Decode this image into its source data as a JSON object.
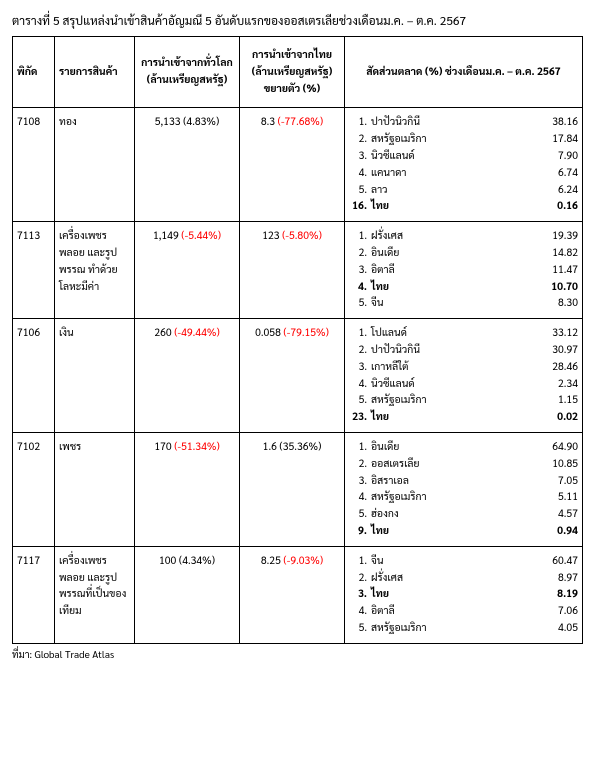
{
  "title": "ตารางที่ 5 สรุปแหล่งนำเข้าสินค้าอัญมณี 5 อันดับแรกของออสเตรเลียช่วงเดือนม.ค. – ต.ค. 2567",
  "headers": {
    "code": "พิกัด",
    "product": "รายการสินค้า",
    "world": "การนำเข้าจากทั่วโลก (ล้านเหรียญสหรัฐ)",
    "thai": "การนำเข้าจากไทย (ล้านเหรียญสหรัฐ) ขยายตัว (%)",
    "share": "สัดส่วนตลาด (%) ช่วงเดือนม.ค. – ต.ค. 2567"
  },
  "rows": [
    {
      "code": "7108",
      "product": "ทอง",
      "world_val": "5,133",
      "world_pct": "(4.83%)",
      "world_neg": false,
      "thai_val": "8.3",
      "thai_pct": "(-77.68%)",
      "thai_neg": true,
      "countries": [
        {
          "rank": "1.",
          "name": "ปาปัวนิวกินี",
          "pct": "38.16",
          "bold": false
        },
        {
          "rank": "2.",
          "name": "สหรัฐอเมริกา",
          "pct": "17.84",
          "bold": false
        },
        {
          "rank": "3.",
          "name": "นิวซีแลนด์",
          "pct": "7.90",
          "bold": false
        },
        {
          "rank": "4.",
          "name": "แคนาดา",
          "pct": "6.74",
          "bold": false
        },
        {
          "rank": "5.",
          "name": "ลาว",
          "pct": "6.24",
          "bold": false
        },
        {
          "rank": "16.",
          "name": "ไทย",
          "pct": "0.16",
          "bold": true
        }
      ]
    },
    {
      "code": "7113",
      "product": "เครื่องเพชรพลอย และรูปพรรณ ทำด้วยโลหะมีค่า",
      "world_val": "1,149",
      "world_pct": "(-5.44%)",
      "world_neg": true,
      "thai_val": "123",
      "thai_pct": "(-5.80%)",
      "thai_neg": true,
      "countries": [
        {
          "rank": "1.",
          "name": "ฝรั่งเศส",
          "pct": "19.39",
          "bold": false
        },
        {
          "rank": "2.",
          "name": "อินเดีย",
          "pct": "14.82",
          "bold": false
        },
        {
          "rank": "3.",
          "name": "อิตาลี",
          "pct": "11.47",
          "bold": false
        },
        {
          "rank": "4.",
          "name": "ไทย",
          "pct": "10.70",
          "bold": true
        },
        {
          "rank": "5.",
          "name": "จีน",
          "pct": "8.30",
          "bold": false
        }
      ]
    },
    {
      "code": "7106",
      "product": "เงิน",
      "world_val": "260",
      "world_pct": "(-49.44%)",
      "world_neg": true,
      "thai_val": "0.058",
      "thai_pct": "(-79.15%)",
      "thai_neg": true,
      "countries": [
        {
          "rank": "1.",
          "name": "โปแลนด์",
          "pct": "33.12",
          "bold": false
        },
        {
          "rank": "2.",
          "name": "ปาปัวนิวกินี",
          "pct": "30.97",
          "bold": false
        },
        {
          "rank": "3.",
          "name": "เกาหลีใต้",
          "pct": "28.46",
          "bold": false
        },
        {
          "rank": "4.",
          "name": "นิวซีแลนด์",
          "pct": "2.34",
          "bold": false
        },
        {
          "rank": "5.",
          "name": "สหรัฐอเมริกา",
          "pct": "1.15",
          "bold": false
        },
        {
          "rank": "23.",
          "name": "ไทย",
          "pct": "0.02",
          "bold": true
        }
      ]
    },
    {
      "code": "7102",
      "product": "เพชร",
      "world_val": "170",
      "world_pct": "(-51.34%)",
      "world_neg": true,
      "thai_val": "1.6",
      "thai_pct": "(35.36%)",
      "thai_neg": false,
      "countries": [
        {
          "rank": "1.",
          "name": "อินเดีย",
          "pct": "64.90",
          "bold": false
        },
        {
          "rank": "2.",
          "name": "ออสเตรเลีย",
          "pct": "10.85",
          "bold": false
        },
        {
          "rank": "3.",
          "name": "อิสราเอล",
          "pct": "7.05",
          "bold": false
        },
        {
          "rank": "4.",
          "name": "สหรัฐอเมริกา",
          "pct": "5.11",
          "bold": false
        },
        {
          "rank": "5.",
          "name": "ฮ่องกง",
          "pct": "4.57",
          "bold": false
        },
        {
          "rank": "9.",
          "name": "ไทย",
          "pct": "0.94",
          "bold": true
        }
      ]
    },
    {
      "code": "7117",
      "product": "เครื่องเพชรพลอย และรูปพรรณที่เป็นของเทียม",
      "world_val": "100",
      "world_pct": "(4.34%)",
      "world_neg": false,
      "thai_val": "8.25",
      "thai_pct": "(-9.03%)",
      "thai_neg": true,
      "countries": [
        {
          "rank": "1.",
          "name": "จีน",
          "pct": "60.47",
          "bold": false
        },
        {
          "rank": "2.",
          "name": "ฝรั่งเศส",
          "pct": "8.97",
          "bold": false
        },
        {
          "rank": "3.",
          "name": "ไทย",
          "pct": "8.19",
          "bold": true
        },
        {
          "rank": "4.",
          "name": "อิตาลี",
          "pct": "7.06",
          "bold": false
        },
        {
          "rank": "5.",
          "name": "สหรัฐอเมริกา",
          "pct": "4.05",
          "bold": false
        }
      ]
    }
  ],
  "source": "ที่มา: Global Trade Atlas"
}
